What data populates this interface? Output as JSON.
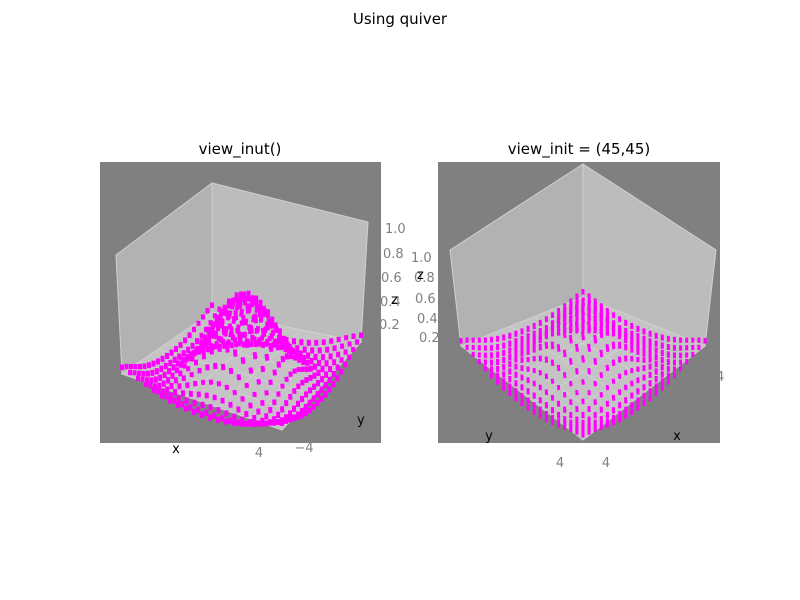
{
  "figure": {
    "suptitle": "Using quiver"
  },
  "colors": {
    "axes_background": "#808080",
    "pane": "#b2b2b2",
    "grid": "#c8c8c8",
    "arrow": "#ff00ff",
    "tick_label": "#808080"
  },
  "chart_data": [
    {
      "type": "quiver3d",
      "title": "view_inut()",
      "view": {
        "elev": 30,
        "azim": -60
      },
      "function": "z = sin(sqrt(x^2+y^2)) / sqrt(x^2+y^2)",
      "grid": {
        "x_range": [
          -5,
          5
        ],
        "y_range": [
          -5,
          5
        ],
        "points_per_axis": 21
      },
      "xlabel": "x",
      "ylabel": "y",
      "zlabel": "z",
      "ztick_labels": [
        "1.0",
        "0.8",
        "0.6",
        "0.4",
        "0.2"
      ],
      "visible_xtick_labels": [
        "4"
      ],
      "visible_ytick_labels": [
        "−4"
      ],
      "color": "#ff00ff"
    },
    {
      "type": "quiver3d",
      "title": "view_init = (45,45)",
      "view": {
        "elev": 45,
        "azim": 45
      },
      "function": "z = sin(sqrt(x^2+y^2)) / sqrt(x^2+y^2)",
      "grid": {
        "x_range": [
          -5,
          5
        ],
        "y_range": [
          -5,
          5
        ],
        "points_per_axis": 21
      },
      "xlabel": "x",
      "ylabel": "y",
      "zlabel": "z",
      "ztick_labels": [
        "1.0",
        "0.8",
        "0.6",
        "0.4",
        "0.2"
      ],
      "visible_xtick_labels": [
        "4"
      ],
      "visible_ytick_labels": [
        "4"
      ],
      "right_edge_tick_label": "4",
      "color": "#ff00ff"
    }
  ]
}
